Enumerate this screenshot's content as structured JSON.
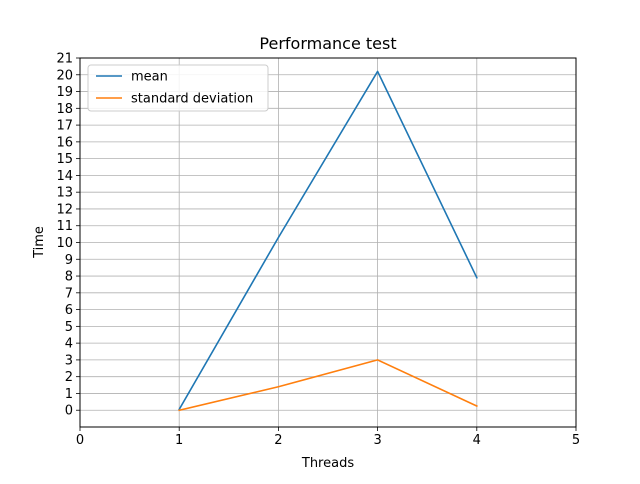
{
  "chart_data": {
    "type": "line",
    "title": "Performance test",
    "xlabel": "Threads",
    "ylabel": "Time",
    "xlim": [
      0,
      5
    ],
    "ylim": [
      -1,
      21
    ],
    "xticks": [
      0,
      1,
      2,
      3,
      4,
      5
    ],
    "yticks": [
      0,
      1,
      2,
      3,
      4,
      5,
      6,
      7,
      8,
      9,
      10,
      11,
      12,
      13,
      14,
      15,
      16,
      17,
      18,
      19,
      20,
      21
    ],
    "grid": true,
    "legend_position": "upper-left",
    "series": [
      {
        "name": "mean",
        "color": "#1f77b4",
        "x": [
          1,
          2,
          3,
          4
        ],
        "y": [
          0.05,
          10.3,
          20.2,
          7.9
        ]
      },
      {
        "name": "standard deviation",
        "color": "#ff7f0e",
        "x": [
          1,
          2,
          3,
          4
        ],
        "y": [
          0.0,
          1.4,
          3.0,
          0.25
        ]
      }
    ]
  }
}
